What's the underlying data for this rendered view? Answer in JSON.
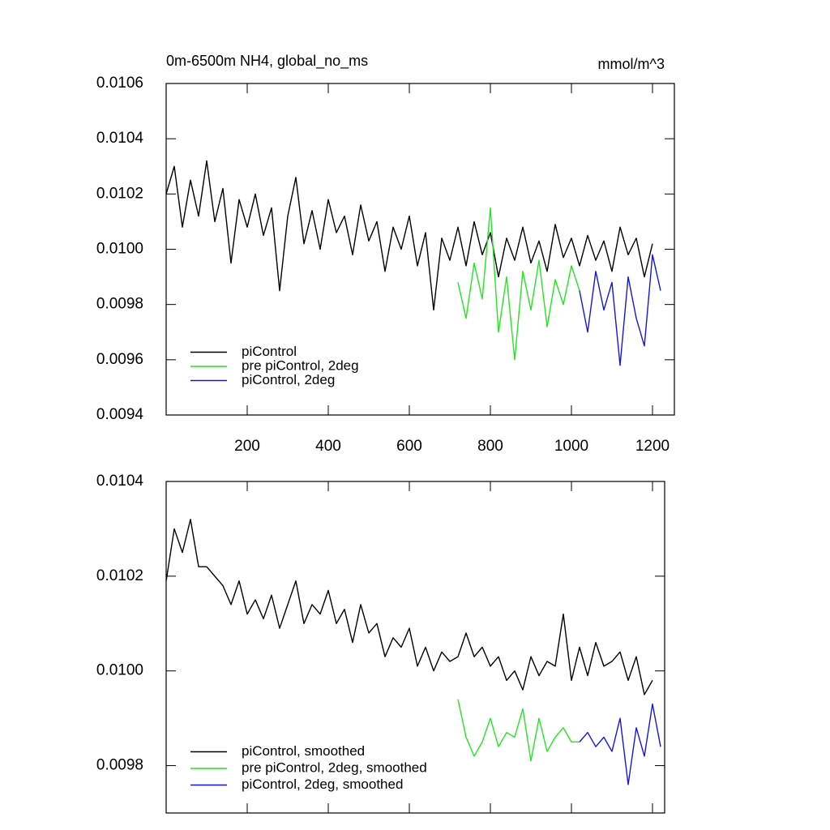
{
  "chart_data": [
    {
      "type": "line",
      "title": "0m-6500m NH4, global_no_ms",
      "units_label": "mmol/m^3",
      "x": [
        0,
        20,
        40,
        60,
        80,
        100,
        120,
        140,
        160,
        180,
        200,
        220,
        240,
        260,
        280,
        300,
        320,
        340,
        360,
        380,
        400,
        420,
        440,
        460,
        480,
        500,
        520,
        540,
        560,
        580,
        600,
        620,
        640,
        660,
        680,
        700,
        720,
        740,
        760,
        780,
        800,
        820,
        840,
        860,
        880,
        900,
        920,
        940,
        960,
        980,
        1000,
        1020,
        1040,
        1060,
        1080,
        1100,
        1120,
        1140,
        1160,
        1180,
        1200,
        1220
      ],
      "series": [
        {
          "name": "piControl",
          "color": "#000000",
          "values": [
            0.0102,
            0.0103,
            0.01008,
            0.01025,
            0.01012,
            0.01032,
            0.0101,
            0.01022,
            0.00995,
            0.01018,
            0.01008,
            0.0102,
            0.01005,
            0.01015,
            0.00985,
            0.01012,
            0.01026,
            0.01002,
            0.01014,
            0.01,
            0.01018,
            0.01006,
            0.01012,
            0.00998,
            0.01016,
            0.01003,
            0.0101,
            0.00992,
            0.01008,
            0.01,
            0.01012,
            0.00994,
            0.01006,
            0.00978,
            0.01004,
            0.00996,
            0.01008,
            0.00994,
            0.0101,
            0.00998,
            0.01006,
            0.0099,
            0.01004,
            0.00996,
            0.01008,
            0.00995,
            0.01003,
            0.00992,
            0.01009,
            0.00997,
            0.01004,
            0.00994,
            0.01005,
            0.00996,
            0.01003,
            0.00992,
            0.01008,
            0.00998,
            0.01004,
            0.0099,
            0.01002,
            null
          ]
        },
        {
          "name": "pre piControl, 2deg",
          "color": "#22e622",
          "values": [
            null,
            null,
            null,
            null,
            null,
            null,
            null,
            null,
            null,
            null,
            null,
            null,
            null,
            null,
            null,
            null,
            null,
            null,
            null,
            null,
            null,
            null,
            null,
            null,
            null,
            null,
            null,
            null,
            null,
            null,
            null,
            null,
            null,
            null,
            null,
            null,
            0.00988,
            0.00975,
            0.00995,
            0.00982,
            0.01015,
            0.0097,
            0.0099,
            0.0096,
            0.00992,
            0.00978,
            0.00996,
            0.00972,
            0.00989,
            0.0098,
            0.00994,
            0.00985,
            null,
            null,
            null,
            null,
            null,
            null,
            null,
            null,
            null,
            null
          ]
        },
        {
          "name": "piControl, 2deg",
          "color": "#1414e6",
          "values": [
            null,
            null,
            null,
            null,
            null,
            null,
            null,
            null,
            null,
            null,
            null,
            null,
            null,
            null,
            null,
            null,
            null,
            null,
            null,
            null,
            null,
            null,
            null,
            null,
            null,
            null,
            null,
            null,
            null,
            null,
            null,
            null,
            null,
            null,
            null,
            null,
            null,
            null,
            null,
            null,
            null,
            null,
            null,
            null,
            null,
            null,
            null,
            null,
            null,
            null,
            null,
            0.00985,
            0.0097,
            0.00992,
            0.00978,
            0.00988,
            0.00958,
            0.0099,
            0.00975,
            0.00965,
            0.00998,
            0.00985
          ]
        }
      ],
      "xlim": [
        0,
        1254
      ],
      "xticks": [
        200,
        400,
        600,
        800,
        1000,
        1200
      ],
      "show_xtick_labels": true,
      "ylim": [
        0.0094,
        0.0106
      ],
      "yticks": [
        0.0094,
        0.0096,
        0.0098,
        {
          "value": 0.01,
          "label": "0.0100"
        },
        0.0102,
        0.0104,
        0.0106
      ],
      "legend": "lower left"
    },
    {
      "type": "line",
      "x": [
        0,
        20,
        40,
        60,
        80,
        100,
        120,
        140,
        160,
        180,
        200,
        220,
        240,
        260,
        280,
        300,
        320,
        340,
        360,
        380,
        400,
        420,
        440,
        460,
        480,
        500,
        520,
        540,
        560,
        580,
        600,
        620,
        640,
        660,
        680,
        700,
        720,
        740,
        760,
        780,
        800,
        820,
        840,
        860,
        880,
        900,
        920,
        940,
        960,
        980,
        1000,
        1020,
        1040,
        1060,
        1080,
        1100,
        1120,
        1140,
        1160,
        1180,
        1200,
        1220
      ],
      "series": [
        {
          "name": "piControl, smoothed",
          "color": "#000000",
          "values": [
            0.01019,
            0.0103,
            0.01025,
            0.01032,
            0.01022,
            0.01022,
            0.0102,
            0.01018,
            0.01014,
            0.01019,
            0.01012,
            0.01015,
            0.01011,
            0.01016,
            0.01009,
            0.01014,
            0.01019,
            0.0101,
            0.01014,
            0.01012,
            0.01017,
            0.0101,
            0.01013,
            0.01006,
            0.01014,
            0.01008,
            0.0101,
            0.01003,
            0.01007,
            0.01005,
            0.01009,
            0.01001,
            0.01005,
            0.01,
            0.01004,
            0.01002,
            0.01003,
            0.01008,
            0.01003,
            0.01005,
            0.01001,
            0.01003,
            0.00998,
            0.01,
            0.00996,
            0.01003,
            0.00999,
            0.01002,
            0.01001,
            0.01012,
            0.00998,
            0.01005,
            0.00999,
            0.01006,
            0.01001,
            0.01002,
            0.01004,
            0.00998,
            0.01003,
            0.00995,
            0.00998,
            null
          ]
        },
        {
          "name": "pre piControl, 2deg, smoothed",
          "color": "#22e622",
          "values": [
            null,
            null,
            null,
            null,
            null,
            null,
            null,
            null,
            null,
            null,
            null,
            null,
            null,
            null,
            null,
            null,
            null,
            null,
            null,
            null,
            null,
            null,
            null,
            null,
            null,
            null,
            null,
            null,
            null,
            null,
            null,
            null,
            null,
            null,
            null,
            null,
            0.00994,
            0.00986,
            0.00982,
            0.00985,
            0.0099,
            0.00984,
            0.00987,
            0.00986,
            0.00992,
            0.00981,
            0.0099,
            0.00983,
            0.00986,
            0.00988,
            0.00985,
            0.00985,
            null,
            null,
            null,
            null,
            null,
            null,
            null,
            null,
            null,
            null
          ]
        },
        {
          "name": "piControl, 2deg, smoothed",
          "color": "#1414e6",
          "values": [
            null,
            null,
            null,
            null,
            null,
            null,
            null,
            null,
            null,
            null,
            null,
            null,
            null,
            null,
            null,
            null,
            null,
            null,
            null,
            null,
            null,
            null,
            null,
            null,
            null,
            null,
            null,
            null,
            null,
            null,
            null,
            null,
            null,
            null,
            null,
            null,
            null,
            null,
            null,
            null,
            null,
            null,
            null,
            null,
            null,
            null,
            null,
            null,
            null,
            null,
            null,
            0.00985,
            0.00987,
            0.00984,
            0.00986,
            0.00983,
            0.0099,
            0.00976,
            0.00988,
            0.00982,
            0.00993,
            0.00984
          ]
        }
      ],
      "xlim": [
        0,
        1230
      ],
      "xticks": [
        200,
        400,
        600,
        800,
        1000,
        1200
      ],
      "show_xtick_labels": false,
      "ylim": [
        0.0097,
        0.0104
      ],
      "yticks": [
        0.0098,
        {
          "value": 0.01,
          "label": "0.0100"
        },
        0.0102,
        0.0104
      ],
      "legend": "lower left"
    }
  ]
}
